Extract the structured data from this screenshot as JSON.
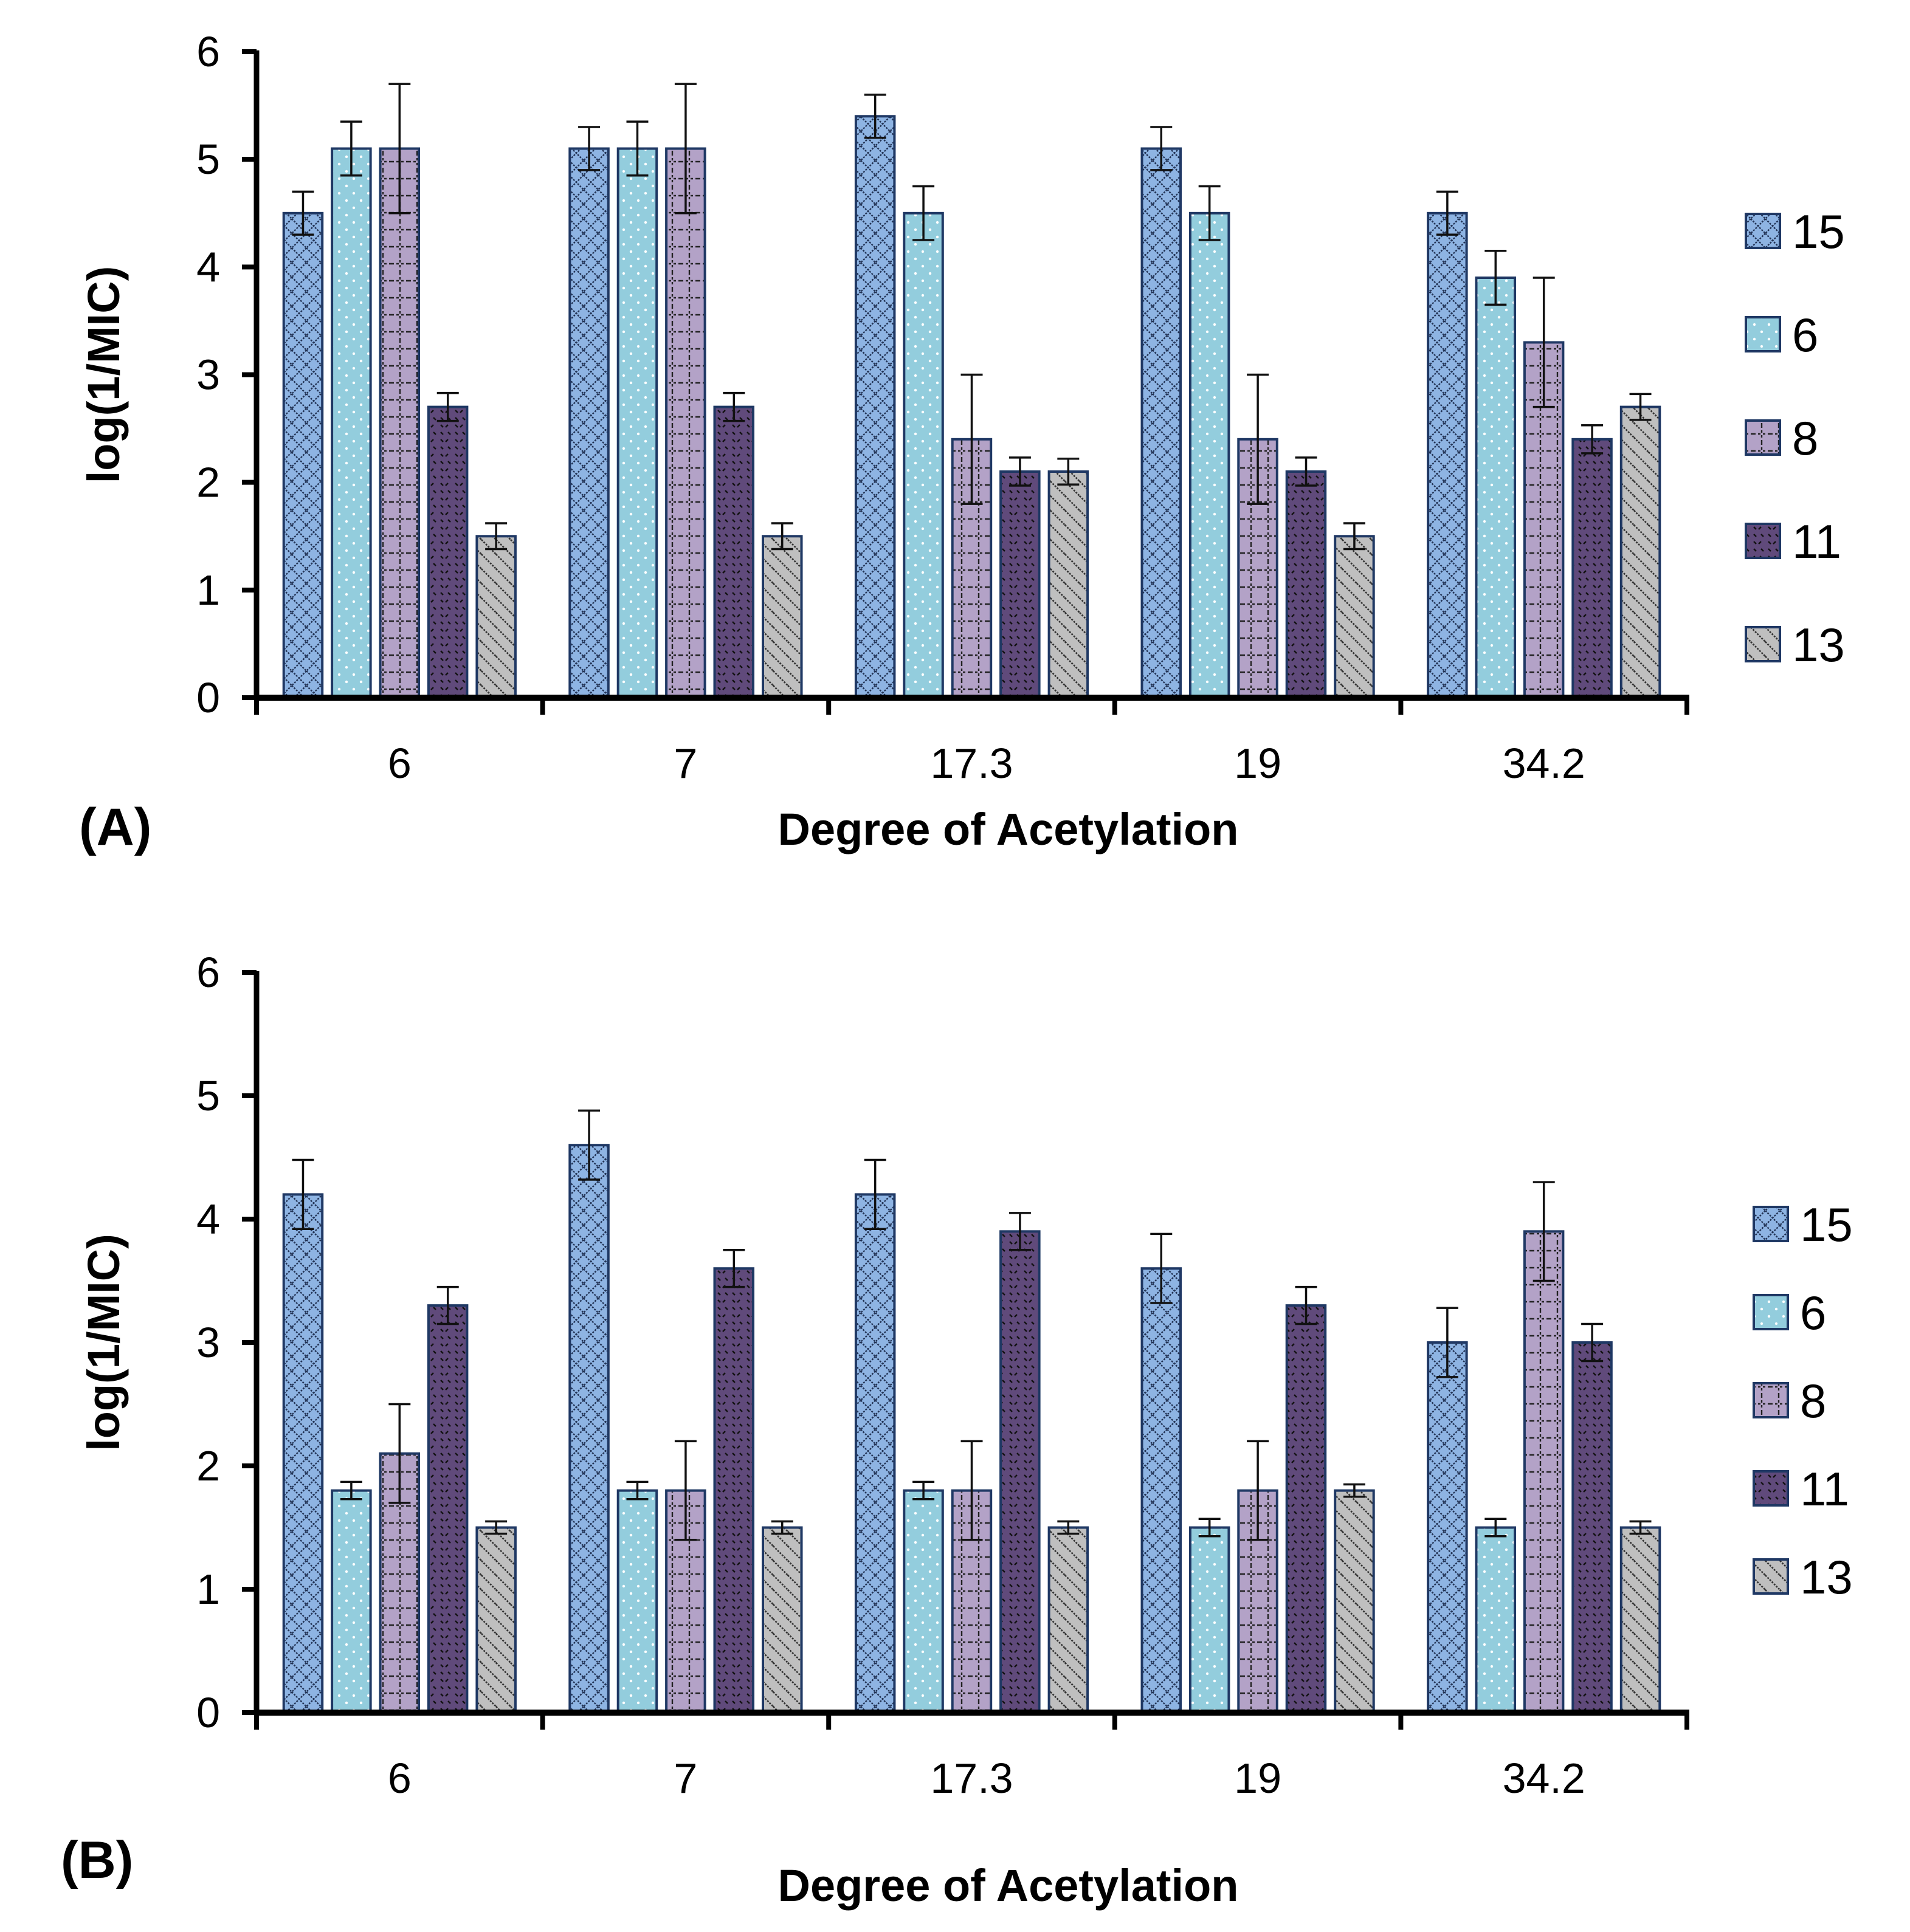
{
  "chart_data": [
    {
      "type": "bar",
      "panel_label": "(A)",
      "title": "",
      "xlabel": "Degree of Acetylation",
      "ylabel": "log(1/MIC)",
      "ylim": [
        0,
        6
      ],
      "yticks": [
        "0",
        "1",
        "2",
        "3",
        "4",
        "5",
        "6"
      ],
      "categories": [
        "6",
        "7",
        "17.3",
        "19",
        "34.2"
      ],
      "legend_position": "right",
      "series": [
        {
          "name": "15",
          "values": [
            4.5,
            5.1,
            5.4,
            5.1,
            4.5
          ],
          "errors": [
            0.2,
            0.2,
            0.2,
            0.2,
            0.2
          ],
          "color": "#8EB4E3",
          "pattern": "diamond"
        },
        {
          "name": "6",
          "values": [
            5.1,
            5.1,
            4.5,
            4.5,
            3.9
          ],
          "errors": [
            0.25,
            0.25,
            0.25,
            0.25,
            0.25
          ],
          "color": "#93CDDD",
          "pattern": "dots"
        },
        {
          "name": "8",
          "values": [
            5.1,
            5.1,
            2.4,
            2.4,
            3.3
          ],
          "errors": [
            0.6,
            0.6,
            0.6,
            0.6,
            0.6
          ],
          "color": "#B3A2C7",
          "pattern": "grid"
        },
        {
          "name": "11",
          "values": [
            2.7,
            2.7,
            2.1,
            2.1,
            2.4
          ],
          "errors": [
            0.13,
            0.13,
            0.13,
            0.13,
            0.13
          ],
          "color": "#604A7B",
          "pattern": "dash"
        },
        {
          "name": "13",
          "values": [
            1.5,
            1.5,
            2.1,
            1.5,
            2.7
          ],
          "errors": [
            0.12,
            0.12,
            0.12,
            0.12,
            0.12
          ],
          "color": "#BFBFBF",
          "pattern": "diag"
        }
      ]
    },
    {
      "type": "bar",
      "panel_label": "(B)",
      "title": "",
      "xlabel": "Degree of Acetylation",
      "ylabel": "log(1/MIC)",
      "ylim": [
        0,
        6
      ],
      "yticks": [
        "0",
        "1",
        "2",
        "3",
        "4",
        "5",
        "6"
      ],
      "categories": [
        "6",
        "7",
        "17.3",
        "19",
        "34.2"
      ],
      "legend_position": "right",
      "series": [
        {
          "name": "15",
          "values": [
            4.2,
            4.6,
            4.2,
            3.6,
            3.0
          ],
          "errors": [
            0.28,
            0.28,
            0.28,
            0.28,
            0.28
          ],
          "color": "#8EB4E3",
          "pattern": "diamond"
        },
        {
          "name": "6",
          "values": [
            1.8,
            1.8,
            1.8,
            1.5,
            1.5
          ],
          "errors": [
            0.07,
            0.07,
            0.07,
            0.07,
            0.07
          ],
          "color": "#93CDDD",
          "pattern": "dots"
        },
        {
          "name": "8",
          "values": [
            2.1,
            1.8,
            1.8,
            1.8,
            3.9
          ],
          "errors": [
            0.4,
            0.4,
            0.4,
            0.4,
            0.4
          ],
          "color": "#B3A2C7",
          "pattern": "grid"
        },
        {
          "name": "11",
          "values": [
            3.3,
            3.6,
            3.9,
            3.3,
            3.0
          ],
          "errors": [
            0.15,
            0.15,
            0.15,
            0.15,
            0.15
          ],
          "color": "#604A7B",
          "pattern": "dash"
        },
        {
          "name": "13",
          "values": [
            1.5,
            1.5,
            1.5,
            1.8,
            1.5
          ],
          "errors": [
            0.05,
            0.05,
            0.05,
            0.05,
            0.05
          ],
          "color": "#BFBFBF",
          "pattern": "diag"
        }
      ]
    }
  ]
}
